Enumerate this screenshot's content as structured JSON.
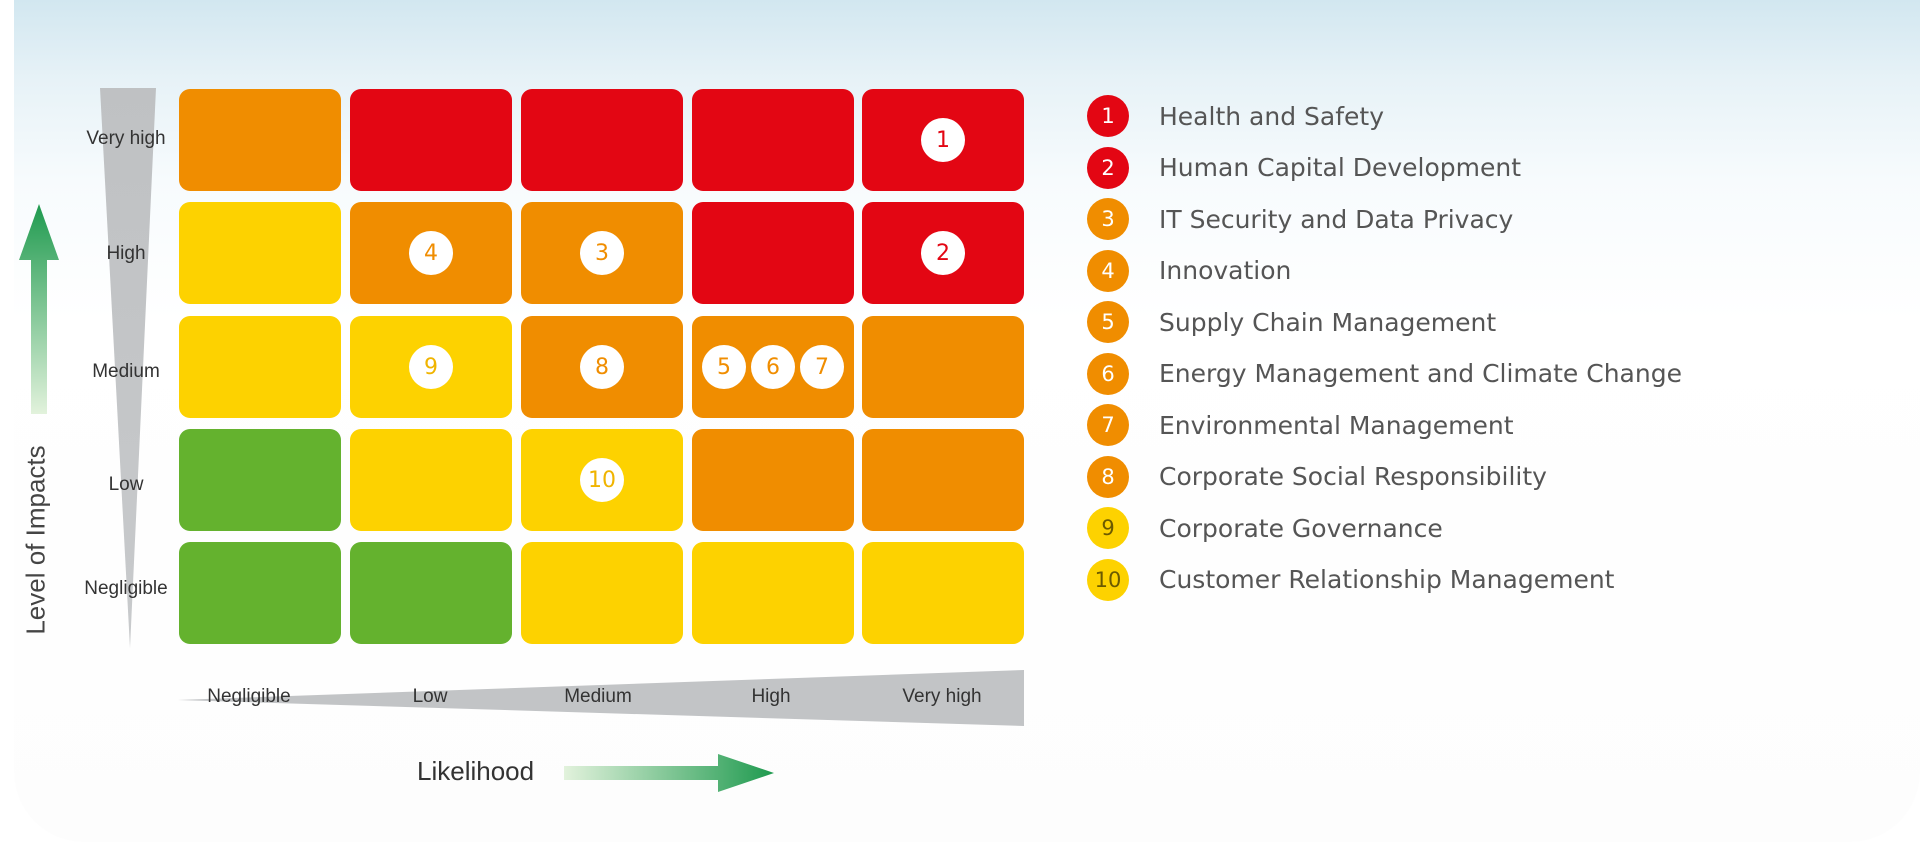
{
  "matrix": {
    "rows": [
      "Very high",
      "High",
      "Medium",
      "Low",
      "Negligible"
    ],
    "columns": [
      "Negligible",
      "Low",
      "Medium",
      "High",
      "Very high"
    ],
    "y_axis_title": "Level of Impacts",
    "x_axis_title": "Likelihood",
    "cell_colors": [
      [
        "orange",
        "red",
        "red",
        "red",
        "red"
      ],
      [
        "yellow",
        "orange",
        "orange",
        "red",
        "red"
      ],
      [
        "yellow",
        "yellow",
        "orange",
        "orange",
        "orange"
      ],
      [
        "green",
        "yellow",
        "yellow",
        "orange",
        "orange"
      ],
      [
        "green",
        "green",
        "yellow",
        "yellow",
        "yellow"
      ]
    ],
    "palette": {
      "red": "#e30613",
      "orange": "#f08d00",
      "yellow": "#fdd200",
      "green": "#64b22e"
    },
    "placements": [
      {
        "id": "1",
        "row": 0,
        "col": 4
      },
      {
        "id": "2",
        "row": 1,
        "col": 4
      },
      {
        "id": "4",
        "row": 1,
        "col": 1
      },
      {
        "id": "3",
        "row": 1,
        "col": 2
      },
      {
        "id": "9",
        "row": 2,
        "col": 1
      },
      {
        "id": "8",
        "row": 2,
        "col": 2
      },
      {
        "id": "5",
        "row": 2,
        "col": 3
      },
      {
        "id": "6",
        "row": 2,
        "col": 3
      },
      {
        "id": "7",
        "row": 2,
        "col": 3
      },
      {
        "id": "10",
        "row": 3,
        "col": 2
      }
    ]
  },
  "legend": [
    {
      "id": "1",
      "label": "Health and Safety",
      "color": "red"
    },
    {
      "id": "2",
      "label": "Human Capital Development",
      "color": "red"
    },
    {
      "id": "3",
      "label": "IT Security and Data Privacy",
      "color": "orange"
    },
    {
      "id": "4",
      "label": "Innovation",
      "color": "orange"
    },
    {
      "id": "5",
      "label": "Supply Chain Management",
      "color": "orange"
    },
    {
      "id": "6",
      "label": "Energy Management and Climate Change",
      "color": "orange"
    },
    {
      "id": "7",
      "label": "Environmental Management",
      "color": "orange"
    },
    {
      "id": "8",
      "label": "Corporate Social Responsibility",
      "color": "orange"
    },
    {
      "id": "9",
      "label": "Corporate Governance",
      "color": "yellow"
    },
    {
      "id": "10",
      "label": "Customer Relationship Management",
      "color": "yellow"
    }
  ]
}
